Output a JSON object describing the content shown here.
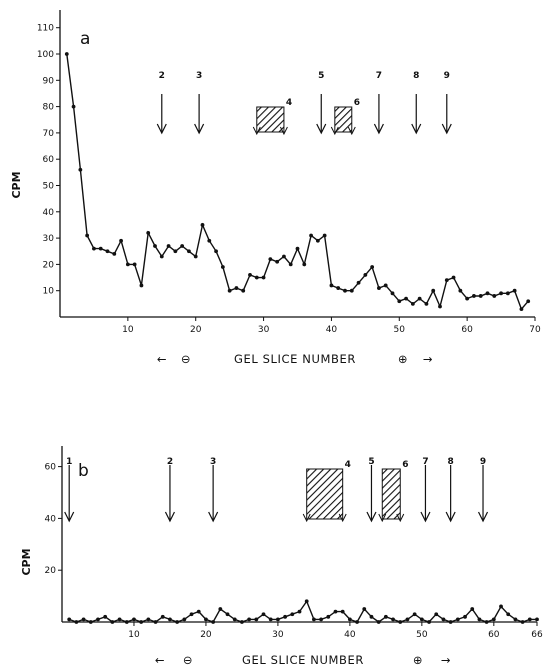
{
  "chart_data": [
    {
      "type": "line",
      "panel_label": "a",
      "ylabel": "CPM",
      "xlabel": "GEL SLICE NUMBER",
      "xlabel_left_symbol": "⊖",
      "xlabel_right_symbol": "⊕",
      "xlim": [
        0,
        70
      ],
      "ylim": [
        0,
        110
      ],
      "xticks": [
        10,
        20,
        30,
        40,
        50,
        60,
        70
      ],
      "yticks": [
        10,
        20,
        30,
        40,
        50,
        60,
        70,
        80,
        90,
        100,
        110
      ],
      "grid": false,
      "x": [
        1,
        2,
        3,
        4,
        5,
        6,
        7,
        8,
        9,
        10,
        11,
        12,
        13,
        14,
        15,
        16,
        17,
        18,
        19,
        20,
        21,
        22,
        23,
        24,
        25,
        26,
        27,
        28,
        29,
        30,
        31,
        32,
        33,
        34,
        35,
        36,
        37,
        38,
        39,
        40,
        41,
        42,
        43,
        44,
        45,
        46,
        47,
        48,
        49,
        50,
        51,
        52,
        53,
        54,
        55,
        56,
        57,
        58,
        59,
        60,
        61,
        62,
        63,
        64,
        65,
        66,
        67,
        68,
        69
      ],
      "y": [
        100,
        80,
        56,
        31,
        26,
        26,
        25,
        24,
        29,
        20,
        20,
        12,
        32,
        27,
        23,
        27,
        25,
        27,
        25,
        23,
        35,
        29,
        25,
        19,
        10,
        11,
        10,
        16,
        15,
        15,
        22,
        21,
        23,
        20,
        26,
        20,
        31,
        29,
        31,
        12,
        11,
        10,
        10,
        13,
        16,
        19,
        11,
        12,
        9,
        6,
        7,
        5,
        7,
        5,
        10,
        4,
        14,
        15,
        10,
        7,
        8,
        8,
        9,
        8,
        9,
        9,
        10,
        3,
        6
      ],
      "arrows": [
        {
          "label": "2",
          "x": 15
        },
        {
          "label": "3",
          "x": 20.5
        },
        {
          "label": "5",
          "x": 38.5
        },
        {
          "label": "7",
          "x": 47
        },
        {
          "label": "8",
          "x": 52.5
        },
        {
          "label": "9",
          "x": 57
        }
      ],
      "hatched_bands": [
        {
          "label": "4",
          "x_start": 29,
          "x_end": 33
        },
        {
          "label": "6",
          "x_start": 40.5,
          "x_end": 43
        }
      ]
    },
    {
      "type": "line",
      "panel_label": "b",
      "ylabel": "CPM",
      "xlabel": "GEL SLICE NUMBER",
      "xlabel_left_symbol": "⊖",
      "xlabel_right_symbol": "⊕",
      "xlim": [
        0,
        66
      ],
      "ylim": [
        0,
        60
      ],
      "xticks": [
        10,
        20,
        30,
        40,
        50,
        60,
        66
      ],
      "yticks": [
        20,
        40,
        60
      ],
      "grid": false,
      "x": [
        1,
        2,
        3,
        4,
        5,
        6,
        7,
        8,
        9,
        10,
        11,
        12,
        13,
        14,
        15,
        16,
        17,
        18,
        19,
        20,
        21,
        22,
        23,
        24,
        25,
        26,
        27,
        28,
        29,
        30,
        31,
        32,
        33,
        34,
        35,
        36,
        37,
        38,
        39,
        40,
        41,
        42,
        43,
        44,
        45,
        46,
        47,
        48,
        49,
        50,
        51,
        52,
        53,
        54,
        55,
        56,
        57,
        58,
        59,
        60,
        61,
        62,
        63,
        64,
        65,
        66
      ],
      "y": [
        1,
        0,
        1,
        0,
        1,
        2,
        0,
        1,
        0,
        1,
        0,
        1,
        0,
        2,
        1,
        0,
        1,
        3,
        4,
        1,
        0,
        5,
        3,
        1,
        0,
        1,
        1,
        3,
        1,
        1,
        2,
        3,
        4,
        8,
        1,
        1,
        2,
        4,
        4,
        1,
        0,
        5,
        2,
        0,
        2,
        1,
        0,
        1,
        3,
        1,
        0,
        3,
        1,
        0,
        1,
        2,
        5,
        1,
        0,
        1,
        6,
        3,
        1,
        0,
        1,
        1
      ],
      "arrows": [
        {
          "label": "1",
          "x": 1
        },
        {
          "label": "2",
          "x": 15
        },
        {
          "label": "3",
          "x": 21
        },
        {
          "label": "5",
          "x": 43
        },
        {
          "label": "7",
          "x": 50.5
        },
        {
          "label": "8",
          "x": 54
        },
        {
          "label": "9",
          "x": 58.5
        }
      ],
      "hatched_bands": [
        {
          "label": "4",
          "x_start": 34,
          "x_end": 39
        },
        {
          "label": "6",
          "x_start": 44.5,
          "x_end": 47
        }
      ]
    }
  ]
}
